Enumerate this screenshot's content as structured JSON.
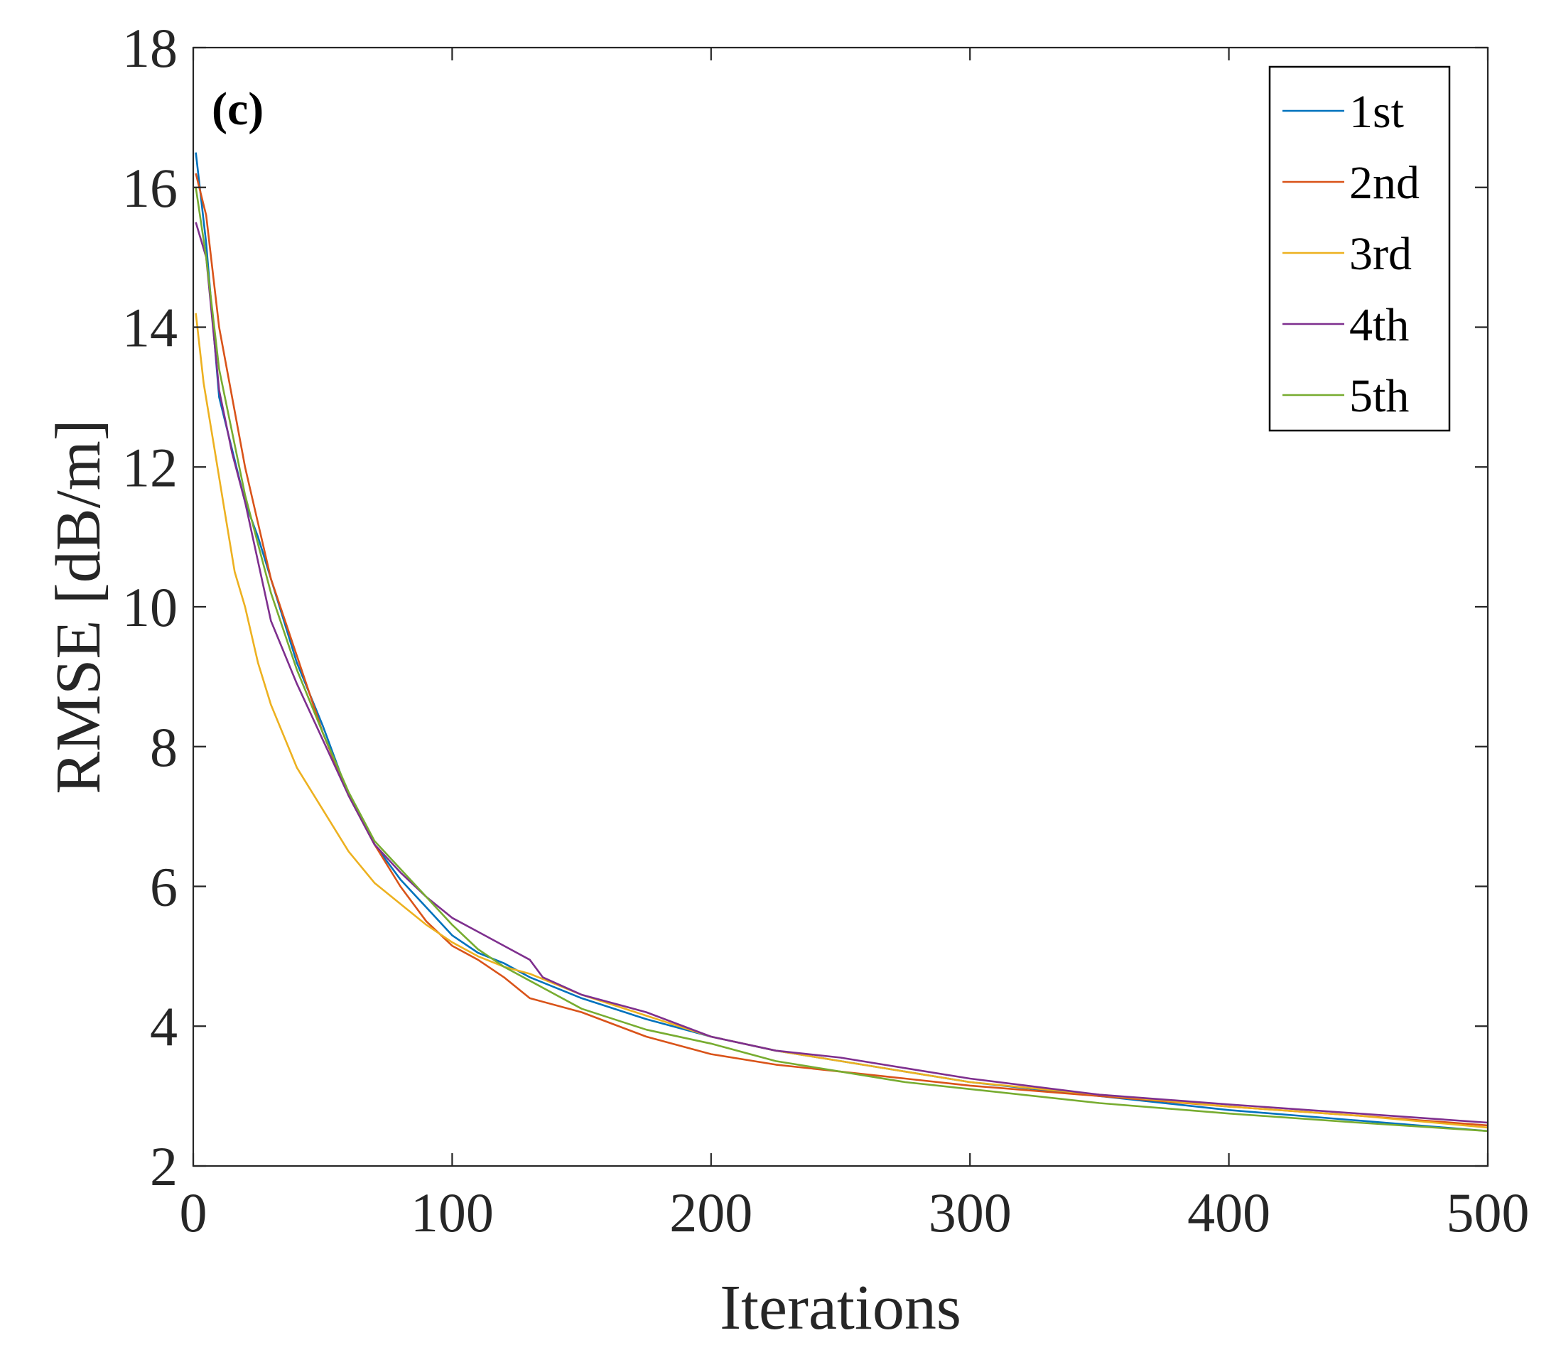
{
  "chart_data": {
    "type": "line",
    "panel_label": "(c)",
    "xlabel": "Iterations",
    "ylabel": "RMSE [dB/m]",
    "xlim": [
      0,
      500
    ],
    "ylim": [
      2,
      18
    ],
    "xticks": [
      0,
      100,
      200,
      300,
      400,
      500
    ],
    "yticks": [
      2,
      4,
      6,
      8,
      10,
      12,
      14,
      16,
      18
    ],
    "grid": false,
    "legend_position": "top-right",
    "series": [
      {
        "name": "1st",
        "color": "#0072BD",
        "points": [
          [
            1,
            16.5
          ],
          [
            5,
            15.2
          ],
          [
            10,
            13.0
          ],
          [
            20,
            11.5
          ],
          [
            25,
            11.0
          ],
          [
            30,
            10.4
          ],
          [
            40,
            9.2
          ],
          [
            50,
            8.3
          ],
          [
            60,
            7.3
          ],
          [
            70,
            6.6
          ],
          [
            80,
            6.1
          ],
          [
            90,
            5.7
          ],
          [
            100,
            5.3
          ],
          [
            110,
            5.05
          ],
          [
            120,
            4.9
          ],
          [
            130,
            4.7
          ],
          [
            150,
            4.4
          ],
          [
            175,
            4.1
          ],
          [
            200,
            3.85
          ],
          [
            225,
            3.65
          ],
          [
            250,
            3.5
          ],
          [
            275,
            3.35
          ],
          [
            300,
            3.2
          ],
          [
            350,
            3.0
          ],
          [
            400,
            2.8
          ],
          [
            450,
            2.65
          ],
          [
            500,
            2.5
          ]
        ]
      },
      {
        "name": "2nd",
        "color": "#D95319",
        "points": [
          [
            1,
            16.2
          ],
          [
            5,
            15.6
          ],
          [
            10,
            14.0
          ],
          [
            20,
            12.0
          ],
          [
            25,
            11.2
          ],
          [
            30,
            10.4
          ],
          [
            40,
            9.3
          ],
          [
            50,
            8.2
          ],
          [
            60,
            7.3
          ],
          [
            70,
            6.6
          ],
          [
            80,
            6.0
          ],
          [
            90,
            5.5
          ],
          [
            100,
            5.15
          ],
          [
            110,
            4.95
          ],
          [
            120,
            4.7
          ],
          [
            130,
            4.4
          ],
          [
            150,
            4.2
          ],
          [
            175,
            3.85
          ],
          [
            200,
            3.6
          ],
          [
            225,
            3.45
          ],
          [
            250,
            3.35
          ],
          [
            275,
            3.25
          ],
          [
            300,
            3.15
          ],
          [
            350,
            3.0
          ],
          [
            400,
            2.85
          ],
          [
            450,
            2.72
          ],
          [
            500,
            2.58
          ]
        ]
      },
      {
        "name": "3rd",
        "color": "#EDB120",
        "points": [
          [
            1,
            14.2
          ],
          [
            4,
            13.2
          ],
          [
            8,
            12.3
          ],
          [
            12,
            11.4
          ],
          [
            16,
            10.5
          ],
          [
            20,
            10.0
          ],
          [
            25,
            9.2
          ],
          [
            30,
            8.6
          ],
          [
            40,
            7.7
          ],
          [
            50,
            7.1
          ],
          [
            60,
            6.5
          ],
          [
            70,
            6.05
          ],
          [
            80,
            5.75
          ],
          [
            90,
            5.45
          ],
          [
            100,
            5.2
          ],
          [
            110,
            5.0
          ],
          [
            120,
            4.85
          ],
          [
            130,
            4.75
          ],
          [
            150,
            4.45
          ],
          [
            175,
            4.15
          ],
          [
            200,
            3.85
          ],
          [
            225,
            3.65
          ],
          [
            250,
            3.5
          ],
          [
            275,
            3.35
          ],
          [
            300,
            3.2
          ],
          [
            350,
            3.02
          ],
          [
            400,
            2.85
          ],
          [
            450,
            2.72
          ],
          [
            500,
            2.55
          ]
        ]
      },
      {
        "name": "4th",
        "color": "#7E2F8E",
        "points": [
          [
            1,
            15.5
          ],
          [
            5,
            15.0
          ],
          [
            10,
            13.1
          ],
          [
            15,
            12.2
          ],
          [
            20,
            11.5
          ],
          [
            30,
            9.8
          ],
          [
            40,
            8.9
          ],
          [
            50,
            8.1
          ],
          [
            60,
            7.3
          ],
          [
            70,
            6.6
          ],
          [
            80,
            6.2
          ],
          [
            90,
            5.85
          ],
          [
            100,
            5.55
          ],
          [
            110,
            5.35
          ],
          [
            120,
            5.15
          ],
          [
            130,
            4.95
          ],
          [
            135,
            4.7
          ],
          [
            150,
            4.45
          ],
          [
            175,
            4.2
          ],
          [
            200,
            3.85
          ],
          [
            225,
            3.65
          ],
          [
            250,
            3.55
          ],
          [
            275,
            3.4
          ],
          [
            300,
            3.25
          ],
          [
            350,
            3.02
          ],
          [
            400,
            2.88
          ],
          [
            450,
            2.75
          ],
          [
            500,
            2.62
          ]
        ]
      },
      {
        "name": "5th",
        "color": "#77AC30",
        "points": [
          [
            1,
            16.0
          ],
          [
            5,
            15.0
          ],
          [
            10,
            13.4
          ],
          [
            20,
            11.6
          ],
          [
            30,
            10.2
          ],
          [
            40,
            9.1
          ],
          [
            50,
            8.2
          ],
          [
            60,
            7.35
          ],
          [
            70,
            6.65
          ],
          [
            80,
            6.25
          ],
          [
            90,
            5.85
          ],
          [
            100,
            5.45
          ],
          [
            110,
            5.1
          ],
          [
            120,
            4.85
          ],
          [
            130,
            4.65
          ],
          [
            150,
            4.25
          ],
          [
            175,
            3.95
          ],
          [
            200,
            3.75
          ],
          [
            225,
            3.5
          ],
          [
            250,
            3.35
          ],
          [
            275,
            3.2
          ],
          [
            300,
            3.1
          ],
          [
            350,
            2.9
          ],
          [
            400,
            2.75
          ],
          [
            450,
            2.62
          ],
          [
            500,
            2.5
          ]
        ]
      }
    ]
  }
}
